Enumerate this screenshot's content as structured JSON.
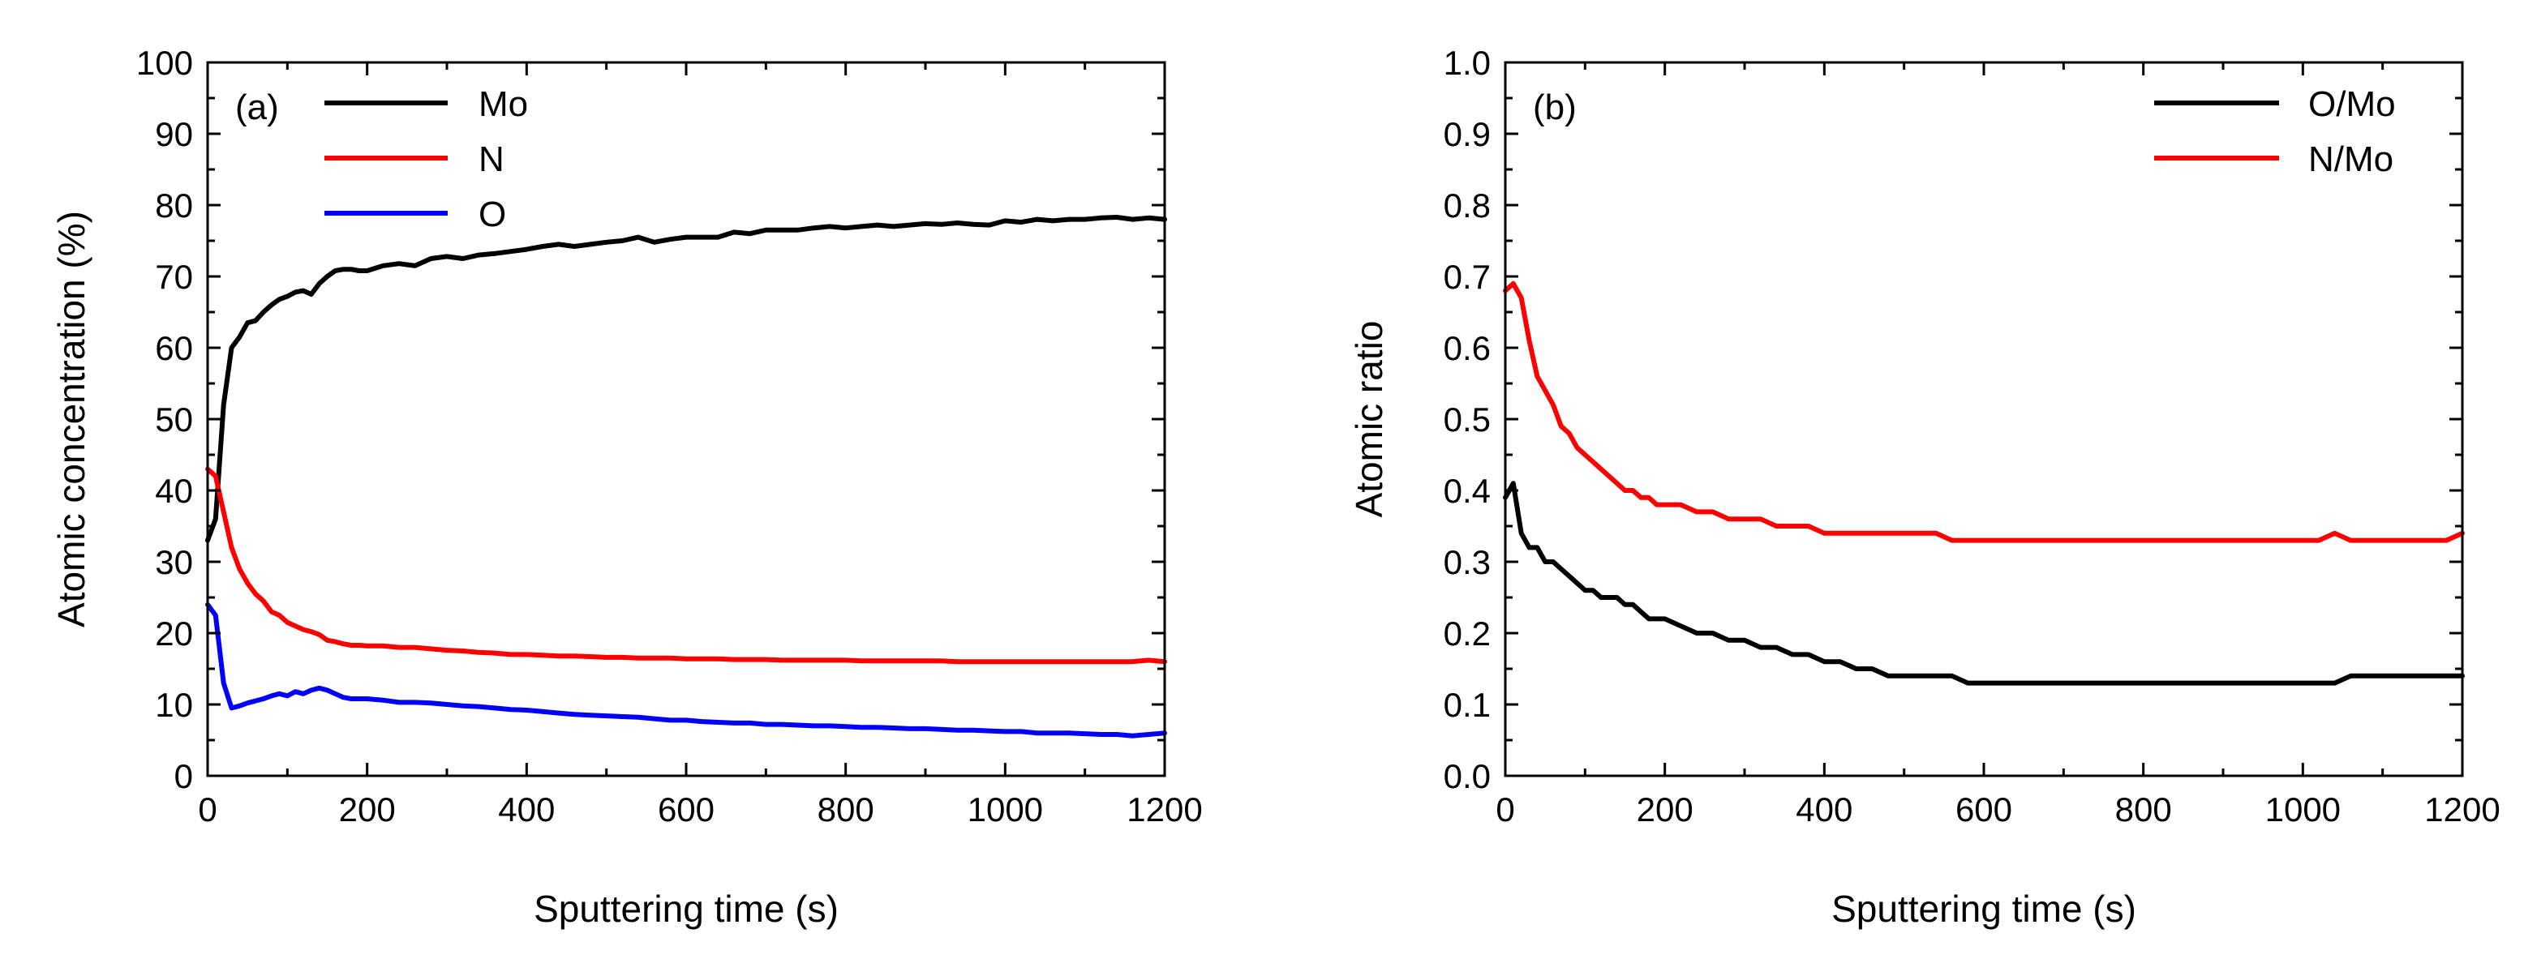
{
  "chart_data": [
    {
      "type": "line",
      "panel_label": "(a)",
      "xlabel": "Sputtering time (s)",
      "ylabel": "Atomic concentration (%)",
      "xlim": [
        0,
        1200
      ],
      "ylim": [
        0,
        100
      ],
      "xticks": [
        "0",
        "200",
        "400",
        "600",
        "800",
        "1000",
        "1200"
      ],
      "yticks": [
        "0",
        "10",
        "20",
        "30",
        "40",
        "50",
        "60",
        "70",
        "80",
        "90",
        "100"
      ],
      "legend_position": "top-left",
      "series": [
        {
          "name": "Mo",
          "color": "#000000",
          "x": [
            0,
            10,
            20,
            30,
            40,
            50,
            60,
            70,
            80,
            90,
            100,
            110,
            120,
            130,
            140,
            150,
            160,
            170,
            180,
            190,
            200,
            220,
            240,
            260,
            280,
            300,
            320,
            340,
            360,
            380,
            400,
            420,
            440,
            460,
            480,
            500,
            520,
            540,
            560,
            580,
            600,
            620,
            640,
            660,
            680,
            700,
            720,
            740,
            760,
            780,
            800,
            820,
            840,
            860,
            880,
            900,
            920,
            940,
            960,
            980,
            1000,
            1020,
            1040,
            1060,
            1080,
            1100,
            1120,
            1140,
            1160,
            1180,
            1200
          ],
          "y": [
            33,
            36,
            52,
            60,
            61.5,
            63.5,
            63.8,
            65,
            66,
            66.8,
            67.2,
            67.8,
            68,
            67.5,
            69,
            70,
            70.8,
            71,
            71,
            70.8,
            70.8,
            71.5,
            71.8,
            71.5,
            72.5,
            72.8,
            72.5,
            73,
            73.2,
            73.5,
            73.8,
            74.2,
            74.5,
            74.2,
            74.5,
            74.8,
            75,
            75.5,
            74.8,
            75.2,
            75.5,
            75.5,
            75.5,
            76.2,
            76,
            76.5,
            76.5,
            76.5,
            76.8,
            77,
            76.8,
            77,
            77.2,
            77,
            77.2,
            77.4,
            77.3,
            77.5,
            77.3,
            77.2,
            77.8,
            77.6,
            78,
            77.8,
            78,
            78,
            78.2,
            78.3,
            78,
            78.2,
            78
          ]
        },
        {
          "name": "N",
          "color": "#ff0000",
          "x": [
            0,
            10,
            20,
            30,
            40,
            50,
            60,
            70,
            80,
            90,
            100,
            110,
            120,
            130,
            140,
            150,
            160,
            170,
            180,
            190,
            200,
            220,
            240,
            260,
            280,
            300,
            320,
            340,
            360,
            380,
            400,
            420,
            440,
            460,
            480,
            500,
            520,
            540,
            560,
            580,
            600,
            620,
            640,
            660,
            680,
            700,
            720,
            740,
            760,
            780,
            800,
            820,
            840,
            860,
            880,
            900,
            920,
            940,
            960,
            980,
            1000,
            1020,
            1040,
            1060,
            1080,
            1100,
            1120,
            1140,
            1160,
            1180,
            1200
          ],
          "y": [
            43,
            42,
            37,
            32,
            29,
            27,
            25.5,
            24.5,
            23,
            22.5,
            21.5,
            21,
            20.5,
            20.2,
            19.8,
            19,
            18.8,
            18.5,
            18.3,
            18.3,
            18.2,
            18.2,
            18,
            18,
            17.8,
            17.6,
            17.5,
            17.3,
            17.2,
            17,
            17,
            16.9,
            16.8,
            16.8,
            16.7,
            16.6,
            16.6,
            16.5,
            16.5,
            16.5,
            16.4,
            16.4,
            16.4,
            16.3,
            16.3,
            16.3,
            16.2,
            16.2,
            16.2,
            16.2,
            16.2,
            16.1,
            16.1,
            16.1,
            16.1,
            16.1,
            16.1,
            16,
            16,
            16,
            16,
            16,
            16,
            16,
            16,
            16,
            16,
            16,
            16,
            16.2,
            16
          ]
        },
        {
          "name": "O",
          "color": "#0000ff",
          "x": [
            0,
            10,
            20,
            30,
            40,
            50,
            60,
            70,
            80,
            90,
            100,
            110,
            120,
            130,
            140,
            150,
            160,
            170,
            180,
            190,
            200,
            220,
            240,
            260,
            280,
            300,
            320,
            340,
            360,
            380,
            400,
            420,
            440,
            460,
            480,
            500,
            520,
            540,
            560,
            580,
            600,
            620,
            640,
            660,
            680,
            700,
            720,
            740,
            760,
            780,
            800,
            820,
            840,
            860,
            880,
            900,
            920,
            940,
            960,
            980,
            1000,
            1020,
            1040,
            1060,
            1080,
            1100,
            1120,
            1140,
            1160,
            1180,
            1200
          ],
          "y": [
            24,
            22.5,
            13,
            9.5,
            9.8,
            10.2,
            10.5,
            10.8,
            11.2,
            11.5,
            11.2,
            11.8,
            11.5,
            12,
            12.3,
            12,
            11.5,
            11,
            10.8,
            10.8,
            10.8,
            10.6,
            10.3,
            10.3,
            10.2,
            10,
            9.8,
            9.7,
            9.5,
            9.3,
            9.2,
            9,
            8.8,
            8.6,
            8.5,
            8.4,
            8.3,
            8.2,
            8,
            7.8,
            7.8,
            7.6,
            7.5,
            7.4,
            7.4,
            7.2,
            7.2,
            7.1,
            7,
            7,
            6.9,
            6.8,
            6.8,
            6.7,
            6.6,
            6.6,
            6.5,
            6.4,
            6.4,
            6.3,
            6.2,
            6.2,
            6,
            6,
            6,
            5.9,
            5.8,
            5.8,
            5.6,
            5.8,
            6
          ]
        }
      ]
    },
    {
      "type": "line",
      "panel_label": "(b)",
      "xlabel": "Sputtering time (s)",
      "ylabel": "Atomic ratio",
      "xlim": [
        0,
        1200
      ],
      "ylim": [
        0,
        1.0
      ],
      "xticks": [
        "0",
        "200",
        "400",
        "600",
        "800",
        "1000",
        "1200"
      ],
      "yticks": [
        "0.0",
        "0.1",
        "0.2",
        "0.3",
        "0.4",
        "0.5",
        "0.6",
        "0.7",
        "0.8",
        "0.9",
        "1.0"
      ],
      "legend_position": "top-right",
      "series": [
        {
          "name": "O/Mo",
          "color": "#000000",
          "x": [
            0,
            10,
            20,
            30,
            40,
            50,
            60,
            70,
            80,
            90,
            100,
            110,
            120,
            130,
            140,
            150,
            160,
            170,
            180,
            190,
            200,
            220,
            240,
            260,
            280,
            300,
            320,
            340,
            360,
            380,
            400,
            420,
            440,
            460,
            480,
            500,
            520,
            540,
            560,
            580,
            600,
            620,
            640,
            660,
            680,
            700,
            720,
            740,
            760,
            780,
            800,
            820,
            840,
            860,
            880,
            900,
            920,
            940,
            960,
            980,
            1000,
            1020,
            1040,
            1060,
            1080,
            1100,
            1120,
            1140,
            1160,
            1180,
            1200
          ],
          "y": [
            0.39,
            0.41,
            0.34,
            0.32,
            0.32,
            0.3,
            0.3,
            0.29,
            0.28,
            0.27,
            0.26,
            0.26,
            0.25,
            0.25,
            0.25,
            0.24,
            0.24,
            0.23,
            0.22,
            0.22,
            0.22,
            0.21,
            0.2,
            0.2,
            0.19,
            0.19,
            0.18,
            0.18,
            0.17,
            0.17,
            0.16,
            0.16,
            0.15,
            0.15,
            0.14,
            0.14,
            0.14,
            0.14,
            0.14,
            0.13,
            0.13,
            0.13,
            0.13,
            0.13,
            0.13,
            0.13,
            0.13,
            0.13,
            0.13,
            0.13,
            0.13,
            0.13,
            0.13,
            0.13,
            0.13,
            0.13,
            0.13,
            0.13,
            0.13,
            0.13,
            0.13,
            0.13,
            0.13,
            0.14,
            0.14,
            0.14,
            0.14,
            0.14,
            0.14,
            0.14,
            0.14
          ]
        },
        {
          "name": "N/Mo",
          "color": "#ff0000",
          "x": [
            0,
            10,
            20,
            30,
            40,
            50,
            60,
            70,
            80,
            90,
            100,
            110,
            120,
            130,
            140,
            150,
            160,
            170,
            180,
            190,
            200,
            220,
            240,
            260,
            280,
            300,
            320,
            340,
            360,
            380,
            400,
            420,
            440,
            460,
            480,
            500,
            520,
            540,
            560,
            580,
            600,
            620,
            640,
            660,
            680,
            700,
            720,
            740,
            760,
            780,
            800,
            820,
            840,
            860,
            880,
            900,
            920,
            940,
            960,
            980,
            1000,
            1020,
            1040,
            1060,
            1080,
            1100,
            1120,
            1140,
            1160,
            1180,
            1200
          ],
          "y": [
            0.68,
            0.69,
            0.67,
            0.61,
            0.56,
            0.54,
            0.52,
            0.49,
            0.48,
            0.46,
            0.45,
            0.44,
            0.43,
            0.42,
            0.41,
            0.4,
            0.4,
            0.39,
            0.39,
            0.38,
            0.38,
            0.38,
            0.37,
            0.37,
            0.36,
            0.36,
            0.36,
            0.35,
            0.35,
            0.35,
            0.34,
            0.34,
            0.34,
            0.34,
            0.34,
            0.34,
            0.34,
            0.34,
            0.33,
            0.33,
            0.33,
            0.33,
            0.33,
            0.33,
            0.33,
            0.33,
            0.33,
            0.33,
            0.33,
            0.33,
            0.33,
            0.33,
            0.33,
            0.33,
            0.33,
            0.33,
            0.33,
            0.33,
            0.33,
            0.33,
            0.33,
            0.33,
            0.34,
            0.33,
            0.33,
            0.33,
            0.33,
            0.33,
            0.33,
            0.33,
            0.34
          ]
        }
      ]
    }
  ]
}
